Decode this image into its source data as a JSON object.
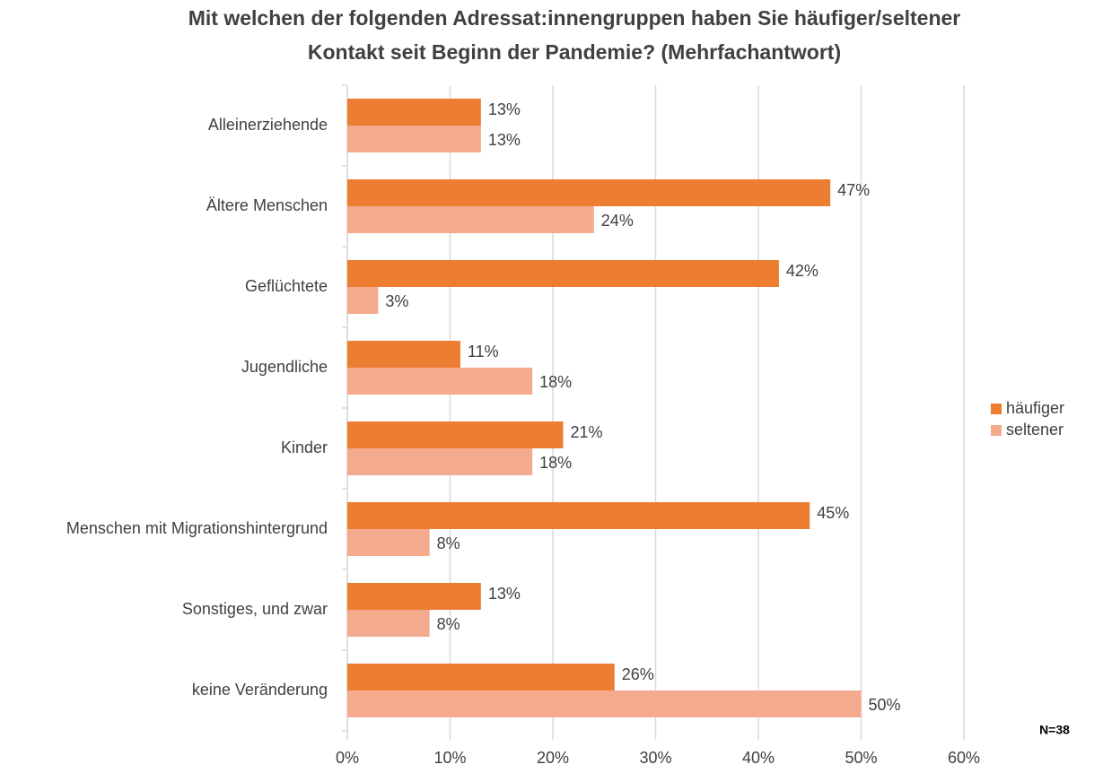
{
  "chart_data": {
    "type": "hbar",
    "title": [
      "Mit welchen der folgenden Adressat:innengruppen haben Sie häufiger/seltener",
      "Kontakt seit Beginn der Pandemie? (Mehrfachantwort)"
    ],
    "categories": [
      "Alleinerziehende",
      "Ältere Menschen",
      "Geflüchtete",
      "Jugendliche",
      "Kinder",
      "Menschen mit Migrationshintergrund",
      "Sonstiges, und zwar",
      "keine Veränderung"
    ],
    "series": [
      {
        "name": "häufiger",
        "color": "#ed7d31",
        "values": [
          13,
          47,
          42,
          11,
          21,
          45,
          13,
          26
        ],
        "value_labels": [
          "13%",
          "47%",
          "42%",
          "11%",
          "21%",
          "45%",
          "13%",
          "26%"
        ]
      },
      {
        "name": "seltener",
        "color": "#f4aa8c",
        "values": [
          13,
          24,
          3,
          18,
          18,
          8,
          8,
          50
        ],
        "value_labels": [
          "13%",
          "24%",
          "3%",
          "18%",
          "18%",
          "8%",
          "8%",
          "50%"
        ]
      }
    ],
    "xlim": [
      0,
      60
    ],
    "xticks": [
      {
        "value": 0,
        "label": "0%"
      },
      {
        "value": 10,
        "label": "10%"
      },
      {
        "value": 20,
        "label": "20%"
      },
      {
        "value": 30,
        "label": "30%"
      },
      {
        "value": 40,
        "label": "40%"
      },
      {
        "value": 50,
        "label": "50%"
      },
      {
        "value": 60,
        "label": "60%"
      }
    ],
    "grid": true,
    "legend": "right",
    "annotation": "N=38"
  }
}
